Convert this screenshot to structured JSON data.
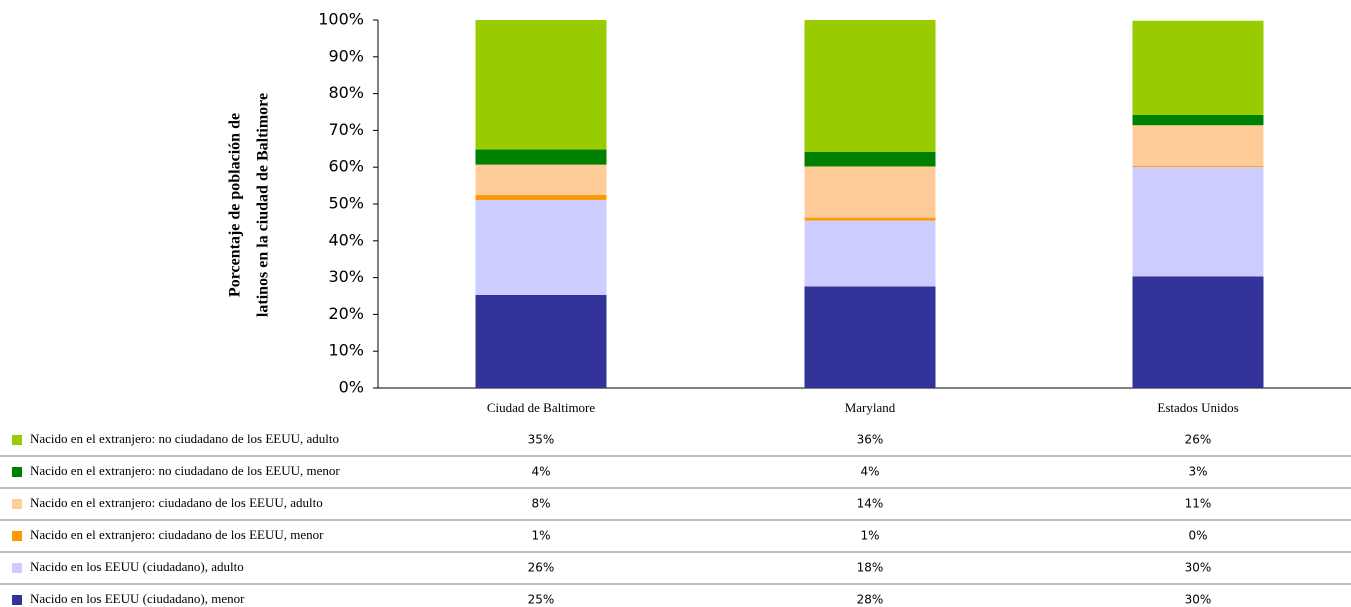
{
  "chart_data": {
    "type": "stacked_bar",
    "ylabel": [
      "Porcentaje de población de",
      "latinos en la ciudad de Baltimore"
    ],
    "categories": [
      "Ciudad de Baltimore",
      "Maryland",
      "Estados Unidos"
    ],
    "ylim": [
      0,
      100
    ],
    "yticks": [
      {
        "value": 0,
        "label": "0%"
      },
      {
        "value": 10,
        "label": "10%"
      },
      {
        "value": 20,
        "label": "20%"
      },
      {
        "value": 30,
        "label": "30%"
      },
      {
        "value": 40,
        "label": "40%"
      },
      {
        "value": 50,
        "label": "50%"
      },
      {
        "value": 60,
        "label": "60%"
      },
      {
        "value": 70,
        "label": "70%"
      },
      {
        "value": 80,
        "label": "80%"
      },
      {
        "value": 90,
        "label": "90%"
      },
      {
        "value": 100,
        "label": "100%"
      }
    ],
    "series": [
      {
        "name": "Nacido en los EEUU (ciudadano), menor",
        "color": "#333399",
        "values": [
          25.3,
          27.6,
          30.3
        ],
        "value_labels": [
          "25%",
          "28%",
          "30%"
        ]
      },
      {
        "name": "Nacido en los EEUU (ciudadano), adulto",
        "color": "#ccccff",
        "values": [
          25.8,
          17.9,
          29.8
        ],
        "value_labels": [
          "26%",
          "18%",
          "30%"
        ]
      },
      {
        "name": "Nacido en el extranjero: ciudadano de los EEUU, menor",
        "color": "#ff9900",
        "values": [
          1.4,
          0.8,
          0.3
        ],
        "value_labels": [
          "1%",
          "1%",
          "0%"
        ]
      },
      {
        "name": "Nacido en el extranjero: ciudadano de los EEUU, adulto",
        "color": "#ffcc99",
        "values": [
          8.2,
          13.9,
          11.0
        ],
        "value_labels": [
          "8%",
          "14%",
          "11%"
        ]
      },
      {
        "name": "Nacido en el extranjero: no ciudadano de los EEUU, menor",
        "color": "#008000",
        "values": [
          4.1,
          4.0,
          2.8
        ],
        "value_labels": [
          "4%",
          "4%",
          "3%"
        ]
      },
      {
        "name": "Nacido en el extranjero: no ciudadano de los EEUU, adulto",
        "color": "#99cc00",
        "values": [
          35.2,
          35.8,
          25.6
        ],
        "value_labels": [
          "35%",
          "36%",
          "26%"
        ]
      }
    ]
  }
}
